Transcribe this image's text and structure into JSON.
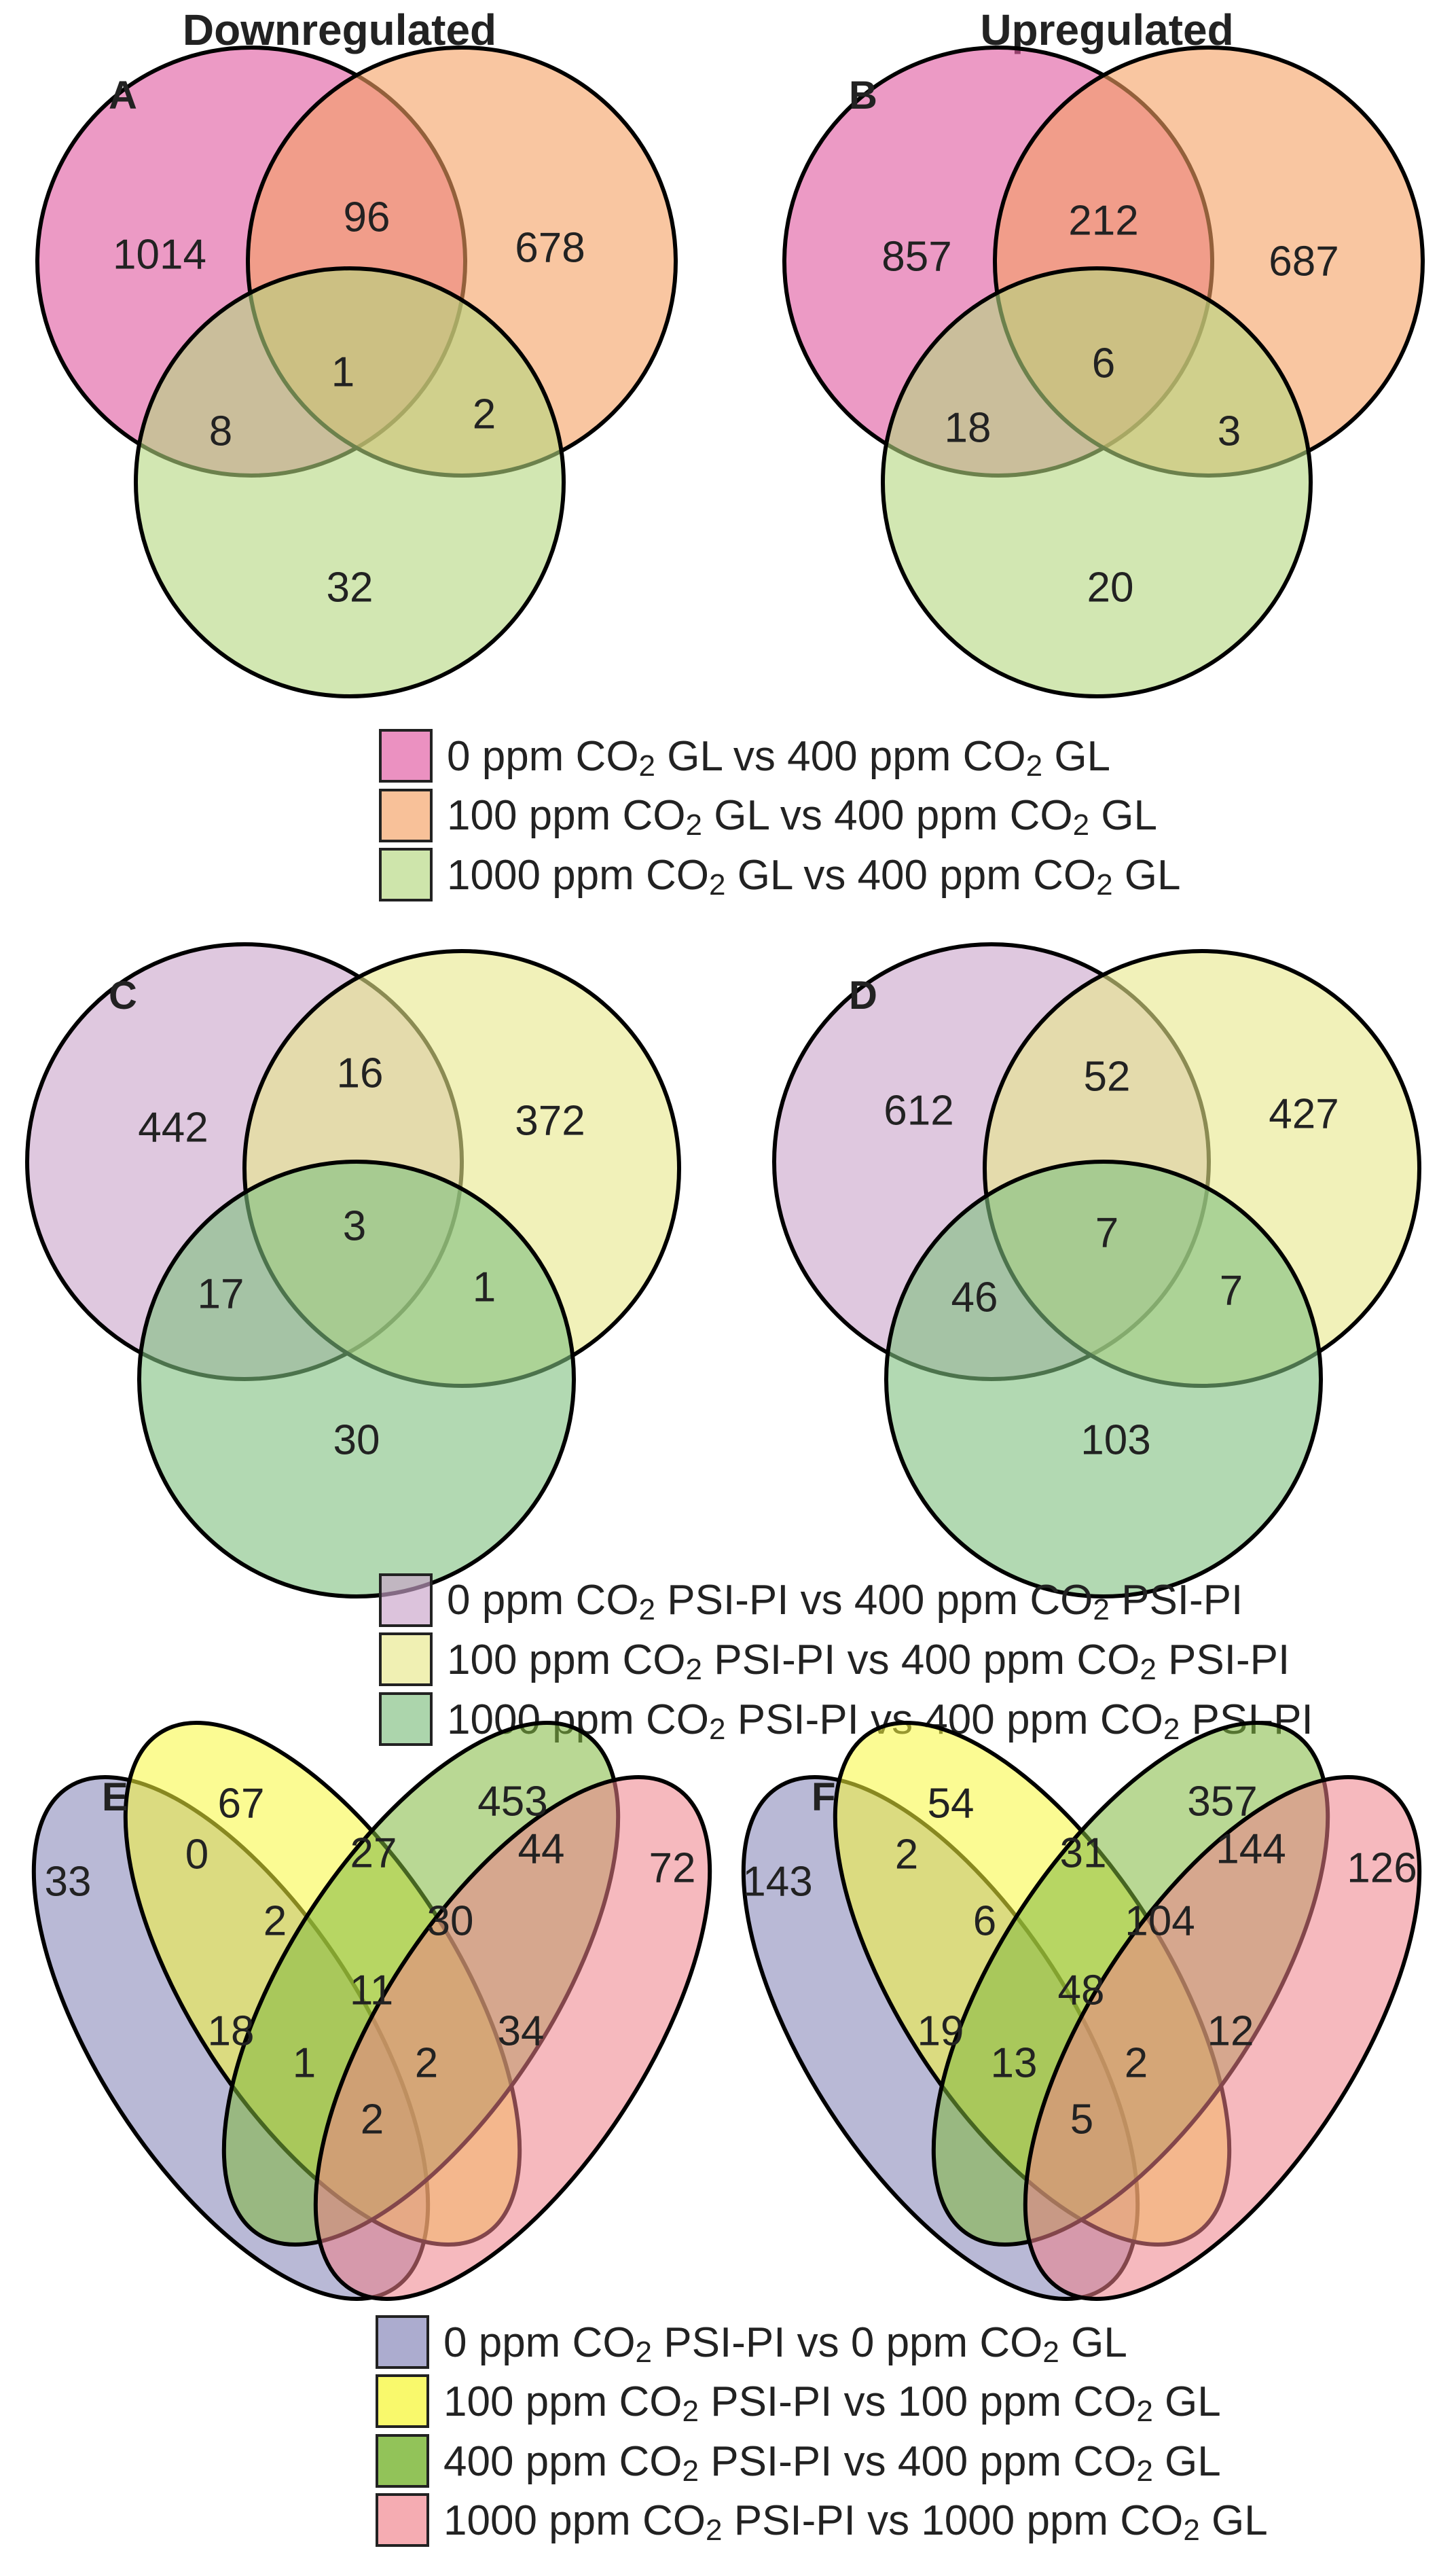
{
  "headers": {
    "left": "Downregulated",
    "right": "Upregulated"
  },
  "colors": {
    "pink": "#e0569f",
    "orange": "#f5a063",
    "light_green": "#b4d77e",
    "lilac": "#c9a3c9",
    "pale_yellow": "#e8e88a",
    "mid_green": "#7fbf7f",
    "slate": "#7f7fb5",
    "yellow": "#f7f73b",
    "green": "#7fb83c",
    "salmon": "#ef8088"
  },
  "panels": {
    "A": {
      "label": "A",
      "values": {
        "only1": "1014",
        "only2": "678",
        "only3": "32",
        "v12": "96",
        "v13": "8",
        "v23": "2",
        "v123": "1"
      }
    },
    "B": {
      "label": "B",
      "values": {
        "only1": "857",
        "only2": "687",
        "only3": "20",
        "v12": "212",
        "v13": "18",
        "v23": "3",
        "v123": "6"
      }
    },
    "C": {
      "label": "C",
      "values": {
        "only1": "442",
        "only2": "372",
        "only3": "30",
        "v12": "16",
        "v13": "17",
        "v23": "1",
        "v123": "3"
      }
    },
    "D": {
      "label": "D",
      "values": {
        "only1": "612",
        "only2": "427",
        "only3": "103",
        "v12": "52",
        "v13": "46",
        "v23": "7",
        "v123": "7"
      }
    },
    "E": {
      "label": "E",
      "values": {
        "a": "33",
        "b": "67",
        "c": "453",
        "d": "72",
        "ab": "0",
        "bc": "27",
        "cd": "44",
        "abc": "2",
        "bcd": "30",
        "abcd": "11",
        "ac": "18",
        "bd": "34",
        "acd": "1",
        "abd": "2",
        "ad": "2"
      }
    },
    "F": {
      "label": "F",
      "values": {
        "a": "143",
        "b": "54",
        "c": "357",
        "d": "126",
        "ab": "2",
        "bc": "31",
        "cd": "144",
        "abc": "6",
        "bcd": "104",
        "abcd": "48",
        "ac": "19",
        "bd": "12",
        "acd": "13",
        "abd": "2",
        "ad": "5"
      }
    }
  },
  "legend_gl": [
    {
      "a": "0 ppm CO",
      "sub": "2",
      "b": " GL vs 400 ppm CO",
      "sub2": "2",
      "c": " GL"
    },
    {
      "a": "100 ppm CO",
      "sub": "2",
      "b": " GL vs 400 ppm CO",
      "sub2": "2",
      "c": " GL"
    },
    {
      "a": "1000 ppm CO",
      "sub": "2",
      "b": " GL vs 400 ppm CO",
      "sub2": "2",
      "c": " GL"
    }
  ],
  "legend_psi": [
    {
      "a": "0 ppm CO",
      "sub": "2",
      "b": " PSI-PI vs 400 ppm CO",
      "sub2": "2",
      "c": " PSI-PI"
    },
    {
      "a": "100 ppm CO",
      "sub": "2",
      "b": " PSI-PI vs 400 ppm CO",
      "sub2": "2",
      "c": " PSI-PI"
    },
    {
      "a": "1000 ppm CO",
      "sub": "2",
      "b": " PSI-PI vs 400 ppm CO",
      "sub2": "2",
      "c": " PSI-PI"
    }
  ],
  "legend_cmp": [
    {
      "a": "0 ppm CO",
      "sub": "2",
      "b": " PSI-PI vs 0 ppm CO",
      "sub2": "2",
      "c": " GL"
    },
    {
      "a": "100 ppm CO",
      "sub": "2",
      "b": " PSI-PI vs 100 ppm CO",
      "sub2": "2",
      "c": " GL"
    },
    {
      "a": "400 ppm CO",
      "sub": "2",
      "b": " PSI-PI vs 400 ppm CO",
      "sub2": "2",
      "c": " GL"
    },
    {
      "a": "1000 ppm CO",
      "sub": "2",
      "b": " PSI-PI vs 1000 ppm CO",
      "sub2": "2",
      "c": " GL"
    }
  ]
}
